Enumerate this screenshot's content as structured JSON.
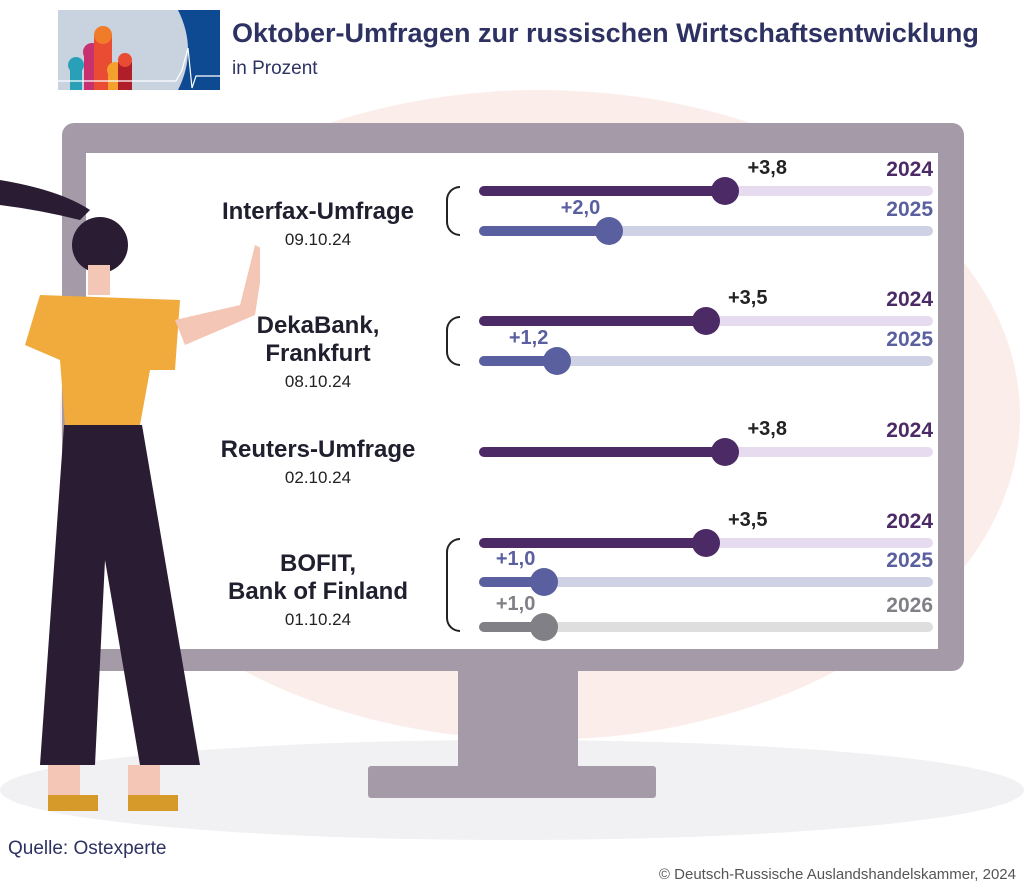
{
  "header": {
    "title": "Oktober-Umfragen zur russischen Wirtschaftsentwicklung",
    "subtitle": "in Prozent"
  },
  "footer": {
    "source": "Quelle: Ostexperte",
    "copyright": "© Deutsch-Russische Auslandshandelskammer, 2024"
  },
  "colors": {
    "2024": "#4b2a65",
    "2025": "#5a5f9f",
    "2026": "#808086",
    "track2024": "#e6dbef",
    "track2025": "#cfd2e5",
    "track2026": "#dededf"
  },
  "chart_data": {
    "type": "bar",
    "title": "Oktober-Umfragen zur russischen Wirtschaftsentwicklung",
    "unit": "in Prozent",
    "xlim": [
      0,
      7
    ],
    "groups": [
      {
        "name": "Interfax-Umfrage",
        "date": "09.10.24",
        "series": [
          {
            "year": "2024",
            "value": 3.8,
            "label": "+3,8"
          },
          {
            "year": "2025",
            "value": 2.0,
            "label": "+2,0"
          }
        ]
      },
      {
        "name": "DekaBank, Frankfurt",
        "name_lines": [
          "DekaBank,",
          "Frankfurt"
        ],
        "date": "08.10.24",
        "series": [
          {
            "year": "2024",
            "value": 3.5,
            "label": "+3,5"
          },
          {
            "year": "2025",
            "value": 1.2,
            "label": "+1,2"
          }
        ]
      },
      {
        "name": "Reuters-Umfrage",
        "date": "02.10.24",
        "series": [
          {
            "year": "2024",
            "value": 3.8,
            "label": "+3,8"
          }
        ]
      },
      {
        "name": "BOFIT, Bank of Finland",
        "name_lines": [
          "BOFIT,",
          "Bank of Finland"
        ],
        "date": "01.10.24",
        "series": [
          {
            "year": "2024",
            "value": 3.5,
            "label": "+3,5"
          },
          {
            "year": "2025",
            "value": 1.0,
            "label": "+1,0"
          },
          {
            "year": "2026",
            "value": 1.0,
            "label": "+1,0"
          }
        ]
      }
    ]
  }
}
